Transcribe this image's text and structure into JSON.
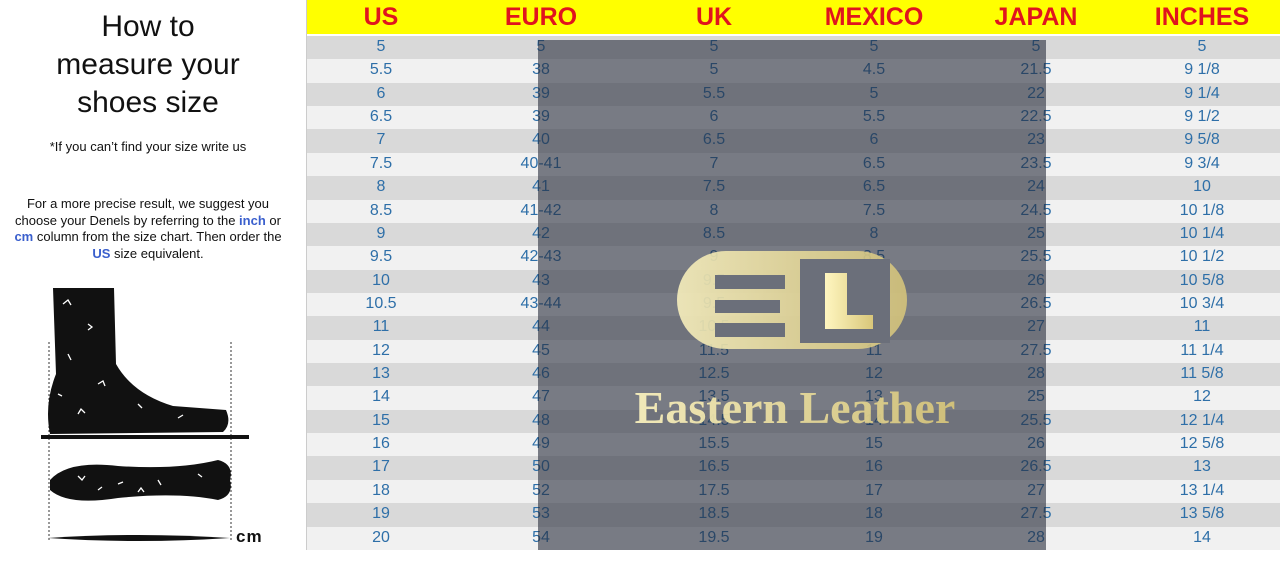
{
  "left_panel": {
    "title_lines": [
      "How to",
      "measure your",
      "shoes size"
    ],
    "note": "*If you can’t find your size write us",
    "tip": {
      "part1": "For a more precise result, we suggest you choose your Denels by referring to the ",
      "inch": "inch",
      "part2": " or ",
      "cm": "cm",
      "part3": " column from the size chart. Then order the ",
      "us": "US",
      "part4": " size equivalent."
    },
    "unit_label": "cm"
  },
  "table": {
    "headers": [
      "US",
      "EURO",
      "UK",
      "MEXICO",
      "JAPAN",
      "INCHES"
    ],
    "rows": [
      [
        "5",
        "5",
        "5",
        "5",
        "5",
        "5"
      ],
      [
        "5.5",
        "38",
        "5",
        "4.5",
        "21.5",
        "9 1/8"
      ],
      [
        "6",
        "39",
        "5.5",
        "5",
        "22",
        "9 1/4"
      ],
      [
        "6.5",
        "39",
        "6",
        "5.5",
        "22.5",
        "9 1/2"
      ],
      [
        "7",
        "40",
        "6.5",
        "6",
        "23",
        "9 5/8"
      ],
      [
        "7.5",
        "40-41",
        "7",
        "6.5",
        "23.5",
        "9 3/4"
      ],
      [
        "8",
        "41",
        "7.5",
        "6.5",
        "24",
        "10"
      ],
      [
        "8.5",
        "41-42",
        "8",
        "7.5",
        "24.5",
        "10 1/8"
      ],
      [
        "9",
        "42",
        "8.5",
        "8",
        "25",
        "10 1/4"
      ],
      [
        "9.5",
        "42-43",
        "9",
        "8.5",
        "25.5",
        "10 1/2"
      ],
      [
        "10",
        "43",
        "9.5",
        "9",
        "26",
        "10 5/8"
      ],
      [
        "10.5",
        "43-44",
        "9.5",
        "9.5",
        "26.5",
        "10 3/4"
      ],
      [
        "11",
        "44",
        "10.5",
        "10",
        "27",
        "11"
      ],
      [
        "12",
        "45",
        "11.5",
        "11",
        "27.5",
        "11 1/4"
      ],
      [
        "13",
        "46",
        "12.5",
        "12",
        "28",
        "11 5/8"
      ],
      [
        "14",
        "47",
        "13.5",
        "13",
        "25",
        "12"
      ],
      [
        "15",
        "48",
        "14.5",
        "14",
        "25.5",
        "12 1/4"
      ],
      [
        "16",
        "49",
        "15.5",
        "15",
        "26",
        "12 5/8"
      ],
      [
        "17",
        "50",
        "16.5",
        "16",
        "26.5",
        "13"
      ],
      [
        "18",
        "52",
        "17.5",
        "17",
        "27",
        "13 1/4"
      ],
      [
        "19",
        "53",
        "18.5",
        "18",
        "27.5",
        "13 5/8"
      ],
      [
        "20",
        "54",
        "19.5",
        "19",
        "28",
        "14"
      ]
    ]
  },
  "watermark": {
    "monogram": "EL",
    "brand": "Eastern Leather"
  },
  "colors": {
    "header_bg": "#ffff00",
    "header_text": "#e0141e",
    "cell_text": "#2e6fa8",
    "link": "#3a5fcd"
  }
}
